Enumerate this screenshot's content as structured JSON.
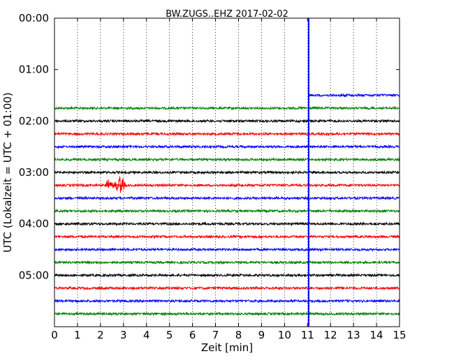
{
  "chart_data": {
    "type": "line",
    "title": "BW.ZUGS..EHZ 2017-02-02",
    "xlabel": "Zeit  [min]",
    "ylabel": "UTC (Lokalzeit = UTC + 01:00)",
    "xlim": [
      0,
      15
    ],
    "x_ticks": [
      "0",
      "1",
      "2",
      "3",
      "4",
      "5",
      "6",
      "7",
      "8",
      "9",
      "10",
      "11",
      "12",
      "13",
      "14",
      "15"
    ],
    "ylim_hours": [
      0,
      6
    ],
    "y_ticks": [
      {
        "label": "00:00",
        "hour": 0
      },
      {
        "label": "01:00",
        "hour": 1
      },
      {
        "label": "02:00",
        "hour": 2
      },
      {
        "label": "03:00",
        "hour": 3
      },
      {
        "label": "04:00",
        "hour": 4
      },
      {
        "label": "05:00",
        "hour": 5
      }
    ],
    "grid": "vertical dotted",
    "trace_interval_min": 15,
    "colors": [
      "#0000ff",
      "#008000",
      "#000000",
      "#ff0000"
    ],
    "partial_trace": {
      "start_hour": 1.5,
      "start_min": 11.05,
      "color": "#0000ff"
    },
    "traces": [
      {
        "hour": 1.75,
        "color": "#008000"
      },
      {
        "hour": 2.0,
        "color": "#000000"
      },
      {
        "hour": 2.25,
        "color": "#ff0000"
      },
      {
        "hour": 2.5,
        "color": "#0000ff"
      },
      {
        "hour": 2.75,
        "color": "#008000"
      },
      {
        "hour": 3.0,
        "color": "#000000"
      },
      {
        "hour": 3.25,
        "color": "#ff0000"
      },
      {
        "hour": 3.5,
        "color": "#0000ff"
      },
      {
        "hour": 3.75,
        "color": "#008000"
      },
      {
        "hour": 4.0,
        "color": "#000000"
      },
      {
        "hour": 4.25,
        "color": "#ff0000"
      },
      {
        "hour": 4.5,
        "color": "#0000ff"
      },
      {
        "hour": 4.75,
        "color": "#008000"
      },
      {
        "hour": 5.0,
        "color": "#000000"
      },
      {
        "hour": 5.25,
        "color": "#ff0000"
      },
      {
        "hour": 5.5,
        "color": "#0000ff"
      },
      {
        "hour": 5.75,
        "color": "#008000"
      }
    ],
    "event": {
      "hour": 3.25,
      "start_min": 2.2,
      "end_min": 3.1,
      "color": "#ff0000"
    },
    "vertical_marker": {
      "x_min": 11.05,
      "color": "#0000ff"
    }
  }
}
